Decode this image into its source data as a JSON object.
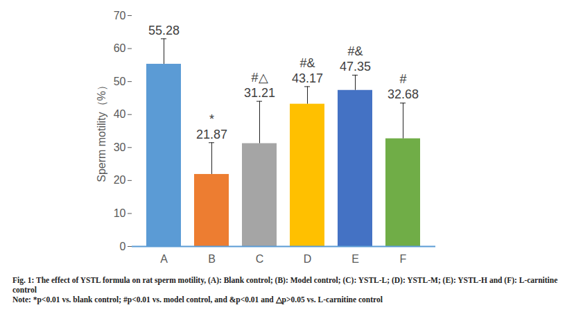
{
  "chart_data": {
    "type": "bar",
    "caption": "Fig. 1: The effect of YSTL formula on rat sperm motility, (A): Blank control; (B): Model control; (C): YSTL-L; (D): YSTL-M; (E): YSTL-H and (F): L-carnitine control",
    "note": "Note: *p<0.01 vs. blank control; #p<0.01 vs. model control, and &p<0.01 and △p>0.05 vs. L-carnitine control",
    "y_label": "Sperm motility（%）",
    "categories": [
      "A",
      "B",
      "C",
      "D",
      "E",
      "F"
    ],
    "values": [
      55.28,
      21.87,
      31.21,
      43.17,
      47.35,
      32.68
    ],
    "error": [
      7.7,
      9.6,
      12.8,
      5.3,
      4.6,
      10.8
    ],
    "annotations": [
      null,
      "*",
      "#△",
      "#&",
      "#&",
      "#"
    ],
    "colors": [
      "#5B9BD5",
      "#ED7D31",
      "#A5A5A5",
      "#FFC000",
      "#4472C4",
      "#70AD47"
    ],
    "ylim": [
      0,
      70
    ],
    "yticks": [
      0,
      10,
      20,
      30,
      40,
      50,
      60,
      70
    ],
    "grid": false,
    "data_labels": true
  }
}
